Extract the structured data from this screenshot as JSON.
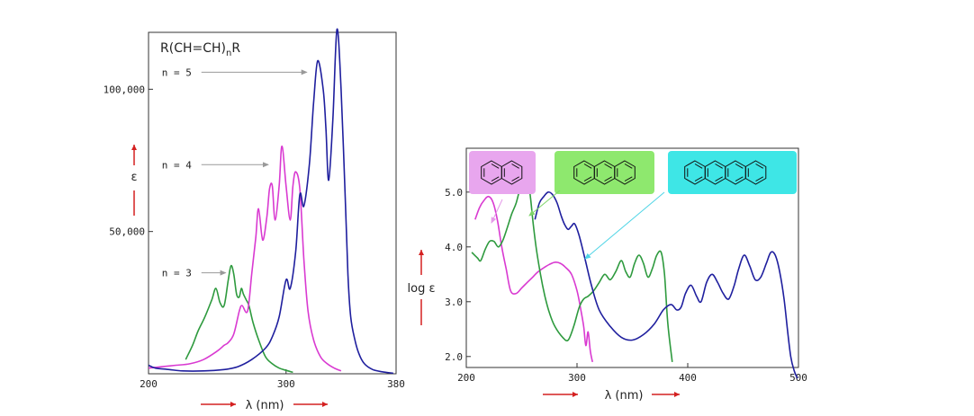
{
  "colors": {
    "green": "#2e9a3e",
    "magenta": "#d93ad1",
    "blue": "#1f1f9e",
    "arrow_red": "#d42020",
    "pointer_grey": "#999999",
    "naphthalene_box": "#e8a6ee",
    "anthracene_box": "#8ee86e",
    "tetracene_box": "#3ee6e6"
  },
  "chart_data": [
    {
      "type": "line",
      "title": "R(CH=CH)nR",
      "title_main": "R(CH=CH)",
      "title_sub": "n",
      "title_end": "R",
      "xlabel": "λ (nm)",
      "ylabel": "ε",
      "xlim": [
        200,
        380
      ],
      "ylim": [
        0,
        120000
      ],
      "xticks": [
        "200",
        "300",
        "380"
      ],
      "xtick_values": [
        200,
        300,
        380
      ],
      "yticks": [
        "50,000",
        "100,000"
      ],
      "ytick_values": [
        50000,
        100000
      ],
      "annotations": [
        {
          "text": "n = 5",
          "x_from": 245,
          "x_to": 315,
          "y": 106000,
          "series": "n = 5"
        },
        {
          "text": "n = 4",
          "x_from": 245,
          "x_to": 287,
          "y": 73500,
          "series": "n = 4"
        },
        {
          "text": "n = 3",
          "x_from": 245,
          "x_to": 256,
          "y": 35500,
          "series": "n = 3"
        }
      ],
      "series": [
        {
          "name": "n = 3",
          "color": "green",
          "x": [
            227,
            232,
            236,
            241,
            246,
            249,
            252,
            255,
            258,
            260,
            262,
            264,
            266,
            267.5,
            269,
            271,
            273,
            276,
            280,
            285,
            290,
            295,
            300,
            305
          ],
          "y": [
            5000,
            10000,
            15000,
            20000,
            26000,
            30000,
            25000,
            24000,
            33000,
            38000,
            35000,
            28000,
            27000,
            30000,
            28000,
            26000,
            24000,
            18000,
            12000,
            6000,
            3500,
            2000,
            1200,
            500
          ]
        },
        {
          "name": "n = 4",
          "color": "magenta",
          "x": [
            200,
            210,
            220,
            230,
            240,
            250,
            255,
            258,
            262,
            266,
            268,
            272,
            275,
            278,
            280,
            283,
            286,
            288,
            290,
            292,
            295,
            297,
            300,
            303,
            305,
            307,
            310,
            313,
            316,
            320,
            325,
            330,
            335,
            340
          ],
          "y": [
            2000,
            2500,
            3000,
            3500,
            5000,
            8000,
            10000,
            11000,
            14000,
            22000,
            24000,
            22000,
            35000,
            48000,
            58000,
            47000,
            55000,
            65000,
            66000,
            54000,
            66000,
            80000,
            66000,
            54000,
            66000,
            71000,
            65000,
            40000,
            22000,
            12000,
            6000,
            3500,
            2000,
            1000
          ]
        },
        {
          "name": "n = 5",
          "color": "blue",
          "x": [
            200,
            205,
            215,
            225,
            240,
            255,
            265,
            275,
            285,
            290,
            295,
            300,
            303,
            307,
            310,
            313,
            317,
            320,
            323,
            327,
            329,
            331,
            334,
            337,
            340,
            343,
            345,
            347,
            350,
            353,
            357,
            363,
            370,
            378
          ],
          "y": [
            3000,
            2000,
            1500,
            1000,
            1000,
            1500,
            2500,
            5000,
            9000,
            13000,
            20000,
            33000,
            30000,
            43000,
            63000,
            59000,
            74000,
            95000,
            110000,
            100000,
            86000,
            68000,
            89000,
            121000,
            100000,
            62000,
            35000,
            20000,
            12000,
            7000,
            3500,
            1500,
            700,
            200
          ]
        }
      ]
    },
    {
      "type": "line",
      "title": "",
      "xlabel": "λ (nm)",
      "ylabel": "log ε",
      "xlim": [
        200,
        500
      ],
      "ylim": [
        1.8,
        5.8
      ],
      "xticks": [
        "200",
        "300",
        "400",
        "500"
      ],
      "xtick_values": [
        200,
        300,
        400,
        500
      ],
      "yticks": [
        "2.0",
        "3.0",
        "4.0",
        "5.0"
      ],
      "ytick_values": [
        2.0,
        3.0,
        4.0,
        5.0
      ],
      "annotations": [
        {
          "text": "",
          "label": "naphthalene structure",
          "points_to_x": 220,
          "points_to_y": 4.88,
          "series": "naphthalene"
        },
        {
          "text": "",
          "label": "anthracene structure",
          "points_to_x": 255,
          "points_to_y": 5.1,
          "series": "anthracene"
        },
        {
          "text": "",
          "label": "tetracene structure",
          "points_to_x": 305,
          "points_to_y": 4.2,
          "series": "tetracene"
        }
      ],
      "series": [
        {
          "label": "naphthalene",
          "color": "magenta",
          "x": [
            208,
            212,
            216,
            220,
            224,
            228,
            232,
            236,
            240,
            245,
            250,
            255,
            260,
            265,
            270,
            275,
            280,
            285,
            290,
            295,
            300,
            303,
            306,
            308,
            310,
            312,
            314
          ],
          "y": [
            4.5,
            4.72,
            4.85,
            4.92,
            4.82,
            4.5,
            4.0,
            3.6,
            3.2,
            3.15,
            3.25,
            3.35,
            3.45,
            3.55,
            3.62,
            3.68,
            3.72,
            3.7,
            3.62,
            3.5,
            3.2,
            2.9,
            2.55,
            2.2,
            2.45,
            2.1,
            1.9
          ]
        },
        {
          "label": "anthracene",
          "color": "green",
          "x": [
            205,
            210,
            213,
            217,
            221,
            225,
            229,
            233,
            237,
            241,
            245,
            249,
            252,
            254,
            256,
            258,
            260,
            263,
            267,
            271,
            275,
            280,
            287,
            292,
            297,
            302,
            306,
            310,
            315,
            320,
            325,
            330,
            335,
            340,
            344,
            348,
            352,
            356,
            360,
            364,
            368,
            372,
            376,
            379,
            382,
            386
          ],
          "y": [
            3.9,
            3.8,
            3.75,
            3.95,
            4.1,
            4.1,
            4.0,
            4.12,
            4.35,
            4.6,
            4.8,
            5.1,
            5.25,
            5.3,
            5.2,
            4.9,
            4.5,
            4.0,
            3.5,
            3.1,
            2.8,
            2.55,
            2.35,
            2.3,
            2.55,
            2.9,
            3.05,
            3.1,
            3.2,
            3.35,
            3.5,
            3.4,
            3.55,
            3.75,
            3.55,
            3.45,
            3.7,
            3.85,
            3.7,
            3.45,
            3.6,
            3.85,
            3.9,
            3.5,
            2.6,
            1.9
          ]
        },
        {
          "label": "tetracene",
          "color": "blue",
          "x": [
            262,
            266,
            270,
            274,
            278,
            282,
            286,
            289,
            292,
            295,
            298,
            302,
            307,
            313,
            320,
            330,
            340,
            350,
            360,
            370,
            378,
            385,
            390,
            394,
            398,
            403,
            408,
            412,
            417,
            422,
            427,
            432,
            437,
            442,
            446,
            451,
            456,
            461,
            466,
            471,
            475,
            479,
            483,
            487,
            490,
            493,
            496,
            499
          ],
          "y": [
            4.5,
            4.8,
            4.92,
            5.0,
            4.95,
            4.8,
            4.55,
            4.4,
            4.32,
            4.38,
            4.42,
            4.2,
            3.8,
            3.3,
            2.85,
            2.55,
            2.35,
            2.3,
            2.4,
            2.6,
            2.85,
            2.95,
            2.85,
            2.9,
            3.15,
            3.3,
            3.1,
            3.0,
            3.35,
            3.5,
            3.35,
            3.15,
            3.05,
            3.3,
            3.6,
            3.85,
            3.65,
            3.4,
            3.45,
            3.7,
            3.9,
            3.85,
            3.55,
            3.05,
            2.5,
            2.0,
            1.75,
            1.6
          ]
        }
      ]
    }
  ]
}
